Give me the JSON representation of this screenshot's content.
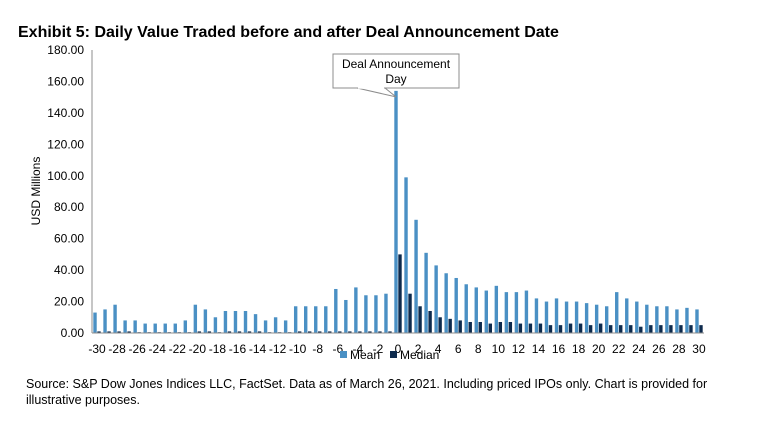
{
  "title": "Exhibit 5: Daily Value Traded before and after Deal Announcement Date",
  "source": "Source: S&P Dow Jones Indices LLC, FactSet. Data as of March 26, 2021. Including priced IPOs only. Chart is provided for illustrative purposes.",
  "chart_data": {
    "type": "bar",
    "ylabel": "USD Millions",
    "ylim": [
      0,
      180
    ],
    "yticks": [
      "0.00",
      "20.00",
      "40.00",
      "60.00",
      "80.00",
      "100.00",
      "120.00",
      "140.00",
      "160.00",
      "180.00"
    ],
    "xtick_labels": [
      "-30",
      "-28",
      "-26",
      "-24",
      "-22",
      "-20",
      "-18",
      "-16",
      "-14",
      "-12",
      "-10",
      "-8",
      "-6",
      "-4",
      "-2",
      "0",
      "2",
      "4",
      "6",
      "8",
      "10",
      "12",
      "14",
      "16",
      "18",
      "20",
      "22",
      "24",
      "26",
      "28",
      "30"
    ],
    "categories": [
      -30,
      -29,
      -28,
      -27,
      -26,
      -25,
      -24,
      -23,
      -22,
      -21,
      -20,
      -19,
      -18,
      -17,
      -16,
      -15,
      -14,
      -13,
      -12,
      -11,
      -10,
      -9,
      -8,
      -7,
      -6,
      -5,
      -4,
      -3,
      -2,
      -1,
      0,
      1,
      2,
      3,
      4,
      5,
      6,
      7,
      8,
      9,
      10,
      11,
      12,
      13,
      14,
      15,
      16,
      17,
      18,
      19,
      20,
      21,
      22,
      23,
      24,
      25,
      26,
      27,
      28,
      29,
      30
    ],
    "series": [
      {
        "name": "Mean",
        "color": "#4a90c4",
        "values": [
          13,
          15,
          18,
          8,
          8,
          6,
          6,
          6,
          6,
          8,
          18,
          15,
          10,
          14,
          14,
          14,
          12,
          8,
          10,
          8,
          17,
          17,
          17,
          17,
          28,
          21,
          29,
          24,
          24,
          25,
          154,
          99,
          72,
          51,
          43,
          38,
          35,
          31,
          29,
          27,
          30,
          26,
          26,
          27,
          22,
          20,
          22,
          20,
          20,
          19,
          18,
          17,
          26,
          22,
          20,
          18,
          17,
          17,
          15,
          16,
          15
        ]
      },
      {
        "name": "Median",
        "color": "#0d2a4d",
        "values": [
          1,
          1,
          1,
          1,
          0.5,
          0.5,
          0.5,
          0.5,
          0.5,
          0.5,
          1,
          1,
          0.5,
          1,
          1,
          1,
          1,
          0.5,
          0.5,
          0.5,
          1,
          1,
          1,
          1,
          1,
          1,
          1,
          1,
          1,
          1,
          50,
          25,
          17,
          14,
          10,
          9,
          8,
          7,
          7,
          6,
          7,
          7,
          6,
          6,
          6,
          5,
          5,
          6,
          6,
          5,
          6,
          5,
          5,
          5,
          4,
          5,
          5,
          5,
          5,
          5,
          5
        ]
      }
    ],
    "annotations": [
      {
        "text_lines": [
          "Deal Announcement",
          "Day"
        ],
        "x": 0
      }
    ],
    "legend": "bottom-center",
    "grid": false
  }
}
